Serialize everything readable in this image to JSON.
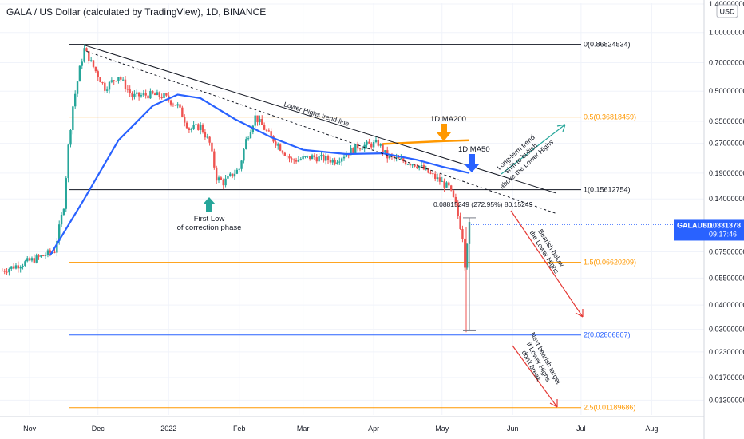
{
  "title": "GALA / US Dollar (calculated by TradingView), 1D, BINANCE",
  "currency_badge": "USD",
  "price_badge": {
    "symbol": "GALAUSD",
    "price": "0.10331378",
    "countdown": "09:17:46"
  },
  "colors": {
    "up": "#26a69a",
    "down": "#ef5350",
    "ma50": "#2962ff",
    "ma200": "#ff9800",
    "fib_black": "#131722",
    "fib_orange": "#ff9800",
    "fib_blue": "#2962ff",
    "arrow_green": "#26a69a",
    "arrow_red": "#e53935",
    "badge_bg": "#2962ff"
  },
  "annotations": {
    "trendline": "Lower Highs trend-line",
    "ma200": "1D MA200",
    "ma50": "1D MA50",
    "first_low_line1": "First Low",
    "first_low_line2": "of correction phase",
    "measure": "0.08815249 (272.95%) 80.15249",
    "long_term_1": "Long-term trend",
    "long_term_2": "shift to bullish",
    "long_term_3": "above the Lower Highs",
    "bearish_1": "Bearish below",
    "bearish_2": "the Lower Highs",
    "next_1": "Next bearish target",
    "next_2": "if Lower Highs",
    "next_3": "don't break"
  },
  "chart_data": {
    "type": "candlestick",
    "title": "GALA / US Dollar (calculated by TradingView), 1D, BINANCE",
    "y_scale": "log",
    "ylim": [
      0.0108,
      1.4
    ],
    "y_ticks": [
      {
        "value": 1.4,
        "label": "1.40000000"
      },
      {
        "value": 1.0,
        "label": "1.00000000"
      },
      {
        "value": 0.7,
        "label": "0.70000000"
      },
      {
        "value": 0.5,
        "label": "0.50000000"
      },
      {
        "value": 0.35,
        "label": "0.35000000"
      },
      {
        "value": 0.27,
        "label": "0.27000000"
      },
      {
        "value": 0.19,
        "label": "0.19000000"
      },
      {
        "value": 0.14,
        "label": "0.14000000"
      },
      {
        "value": 0.075,
        "label": "0.07500000"
      },
      {
        "value": 0.055,
        "label": "0.05500000"
      },
      {
        "value": 0.04,
        "label": "0.04000000"
      },
      {
        "value": 0.03,
        "label": "0.03000000"
      },
      {
        "value": 0.023,
        "label": "0.02300000"
      },
      {
        "value": 0.017,
        "label": "0.01700000"
      },
      {
        "value": 0.013,
        "label": "0.01300000"
      }
    ],
    "x_ticks": [
      {
        "date": "2021-11-01",
        "label": "Nov"
      },
      {
        "date": "2021-12-01",
        "label": "Dec"
      },
      {
        "date": "2022-01-01",
        "label": "2022"
      },
      {
        "date": "2022-02-01",
        "label": "Feb"
      },
      {
        "date": "2022-03-01",
        "label": "Mar"
      },
      {
        "date": "2022-04-01",
        "label": "Apr"
      },
      {
        "date": "2022-05-01",
        "label": "May"
      },
      {
        "date": "2022-06-01",
        "label": "Jun"
      },
      {
        "date": "2022-07-01",
        "label": "Jul"
      },
      {
        "date": "2022-08-01",
        "label": "Aug"
      }
    ],
    "fib_levels": [
      {
        "level": "0",
        "value": 0.86824534,
        "label": "0(0.86824534)",
        "color": "#131722"
      },
      {
        "level": "0.5",
        "value": 0.36818459,
        "label": "0.5(0.36818459)",
        "color": "#ff9800"
      },
      {
        "level": "1",
        "value": 0.15612754,
        "label": "1(0.15612754)",
        "color": "#131722"
      },
      {
        "level": "1.5",
        "value": 0.06620209,
        "label": "1.5(0.06620209)",
        "color": "#ff9800"
      },
      {
        "level": "2",
        "value": 0.02806807,
        "label": "2(0.02806807)",
        "color": "#2962ff"
      },
      {
        "level": "2.5",
        "value": 0.01189686,
        "label": "2.5(0.01189686)",
        "color": "#ff9800"
      }
    ],
    "ohlc_keypoints": [
      {
        "date": "2021-10-20",
        "close": 0.06
      },
      {
        "date": "2021-11-05",
        "close": 0.07
      },
      {
        "date": "2021-11-12",
        "close": 0.076
      },
      {
        "date": "2021-11-16",
        "close": 0.13
      },
      {
        "date": "2021-11-18",
        "close": 0.26
      },
      {
        "date": "2021-11-20",
        "close": 0.42
      },
      {
        "date": "2021-11-23",
        "close": 0.65
      },
      {
        "date": "2021-11-25",
        "close": 0.82
      },
      {
        "date": "2021-11-28",
        "close": 0.7
      },
      {
        "date": "2021-12-04",
        "close": 0.52
      },
      {
        "date": "2021-12-10",
        "close": 0.6
      },
      {
        "date": "2021-12-16",
        "close": 0.47
      },
      {
        "date": "2021-12-24",
        "close": 0.48
      },
      {
        "date": "2021-12-30",
        "close": 0.47
      },
      {
        "date": "2022-01-05",
        "close": 0.42
      },
      {
        "date": "2022-01-10",
        "close": 0.32
      },
      {
        "date": "2022-01-15",
        "close": 0.33
      },
      {
        "date": "2022-01-19",
        "close": 0.27
      },
      {
        "date": "2022-01-22",
        "close": 0.18
      },
      {
        "date": "2022-01-25",
        "close": 0.17
      },
      {
        "date": "2022-02-01",
        "close": 0.2
      },
      {
        "date": "2022-02-04",
        "close": 0.28
      },
      {
        "date": "2022-02-08",
        "close": 0.37
      },
      {
        "date": "2022-02-14",
        "close": 0.3
      },
      {
        "date": "2022-02-24",
        "close": 0.22
      },
      {
        "date": "2022-03-05",
        "close": 0.23
      },
      {
        "date": "2022-03-15",
        "close": 0.22
      },
      {
        "date": "2022-03-25",
        "close": 0.26
      },
      {
        "date": "2022-04-03",
        "close": 0.27
      },
      {
        "date": "2022-04-07",
        "close": 0.23
      },
      {
        "date": "2022-04-20",
        "close": 0.21
      },
      {
        "date": "2022-04-28",
        "close": 0.18
      },
      {
        "date": "2022-05-04",
        "close": 0.16
      },
      {
        "date": "2022-05-07",
        "close": 0.13
      },
      {
        "date": "2022-05-10",
        "close": 0.09
      },
      {
        "date": "2022-05-11",
        "close": 0.065
      },
      {
        "date": "2022-05-12",
        "close": 0.085
      },
      {
        "date": "2022-05-13",
        "close": 0.103
      }
    ],
    "ma50_keypoints": [
      {
        "date": "2021-11-10",
        "value": 0.072
      },
      {
        "date": "2021-11-25",
        "value": 0.14
      },
      {
        "date": "2021-12-10",
        "value": 0.28
      },
      {
        "date": "2021-12-25",
        "value": 0.42
      },
      {
        "date": "2022-01-05",
        "value": 0.48
      },
      {
        "date": "2022-01-15",
        "value": 0.46
      },
      {
        "date": "2022-01-30",
        "value": 0.36
      },
      {
        "date": "2022-02-15",
        "value": 0.29
      },
      {
        "date": "2022-03-01",
        "value": 0.25
      },
      {
        "date": "2022-03-20",
        "value": 0.238
      },
      {
        "date": "2022-04-05",
        "value": 0.24
      },
      {
        "date": "2022-04-20",
        "value": 0.222
      },
      {
        "date": "2022-05-01",
        "value": 0.205
      },
      {
        "date": "2022-05-13",
        "value": 0.19
      }
    ],
    "ma200_keypoints": [
      {
        "date": "2022-04-05",
        "value": 0.268
      },
      {
        "date": "2022-05-01",
        "value": 0.277
      },
      {
        "date": "2022-05-13",
        "value": 0.28
      }
    ],
    "lower_highs_trendline": [
      {
        "date": "2021-11-24",
        "value": 0.868
      },
      {
        "date": "2022-06-20",
        "value": 0.15
      }
    ],
    "dashed_trendline": [
      {
        "date": "2021-11-26",
        "value": 0.8
      },
      {
        "date": "2022-06-20",
        "value": 0.118
      }
    ],
    "measure_range": {
      "date": "2022-05-13",
      "low": 0.0295,
      "high": 0.112
    }
  }
}
